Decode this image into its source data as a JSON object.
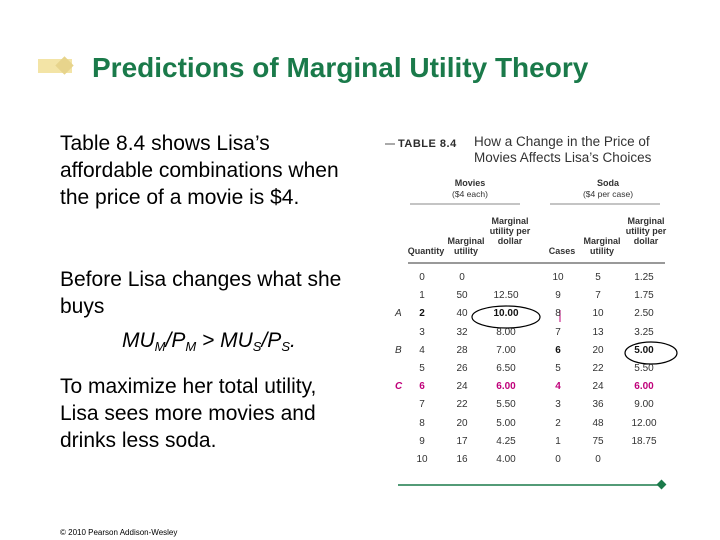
{
  "title": "Predictions of Marginal Utility Theory",
  "paragraph1": "Table 8.4 shows Lisa’s affordable combinations when the price of a movie is $4.",
  "paragraph2": "Before Lisa changes what she buys",
  "formula": {
    "a": "MU",
    "a_sub": "M",
    "b": "/P",
    "b_sub": "M",
    "mid": " > MU",
    "c_sub": "S",
    "d": "/P",
    "d_sub": "S",
    "end": "."
  },
  "paragraph3": "To maximize her total utility, Lisa sees more movies and drinks less soda.",
  "copyright": "© 2010 Pearson Addison-Wesley",
  "table": {
    "label": "TABLE 8.4",
    "caption": "How a Change in the Price of Movies Affects Lisa’s Choices",
    "movies_group": "Movies",
    "movies_price": "($4 each)",
    "soda_group": "Soda",
    "soda_price": "($4 per case)",
    "headers": [
      "Quantity",
      "Marginal utility",
      "Marginal utility per dollar",
      "Cases",
      "Marginal utility",
      "Marginal utility per dollar"
    ],
    "rows": [
      {
        "label": "",
        "cells": [
          "0",
          "0",
          "",
          "10",
          "5",
          "1.25"
        ]
      },
      {
        "label": "",
        "cells": [
          "1",
          "50",
          "12.50",
          "9",
          "7",
          "1.75"
        ]
      },
      {
        "label": "A",
        "cells": [
          "2",
          "40",
          "10.00",
          "8",
          "10",
          "2.50"
        ]
      },
      {
        "label": "",
        "cells": [
          "3",
          "32",
          "8.00",
          "7",
          "13",
          "3.25"
        ]
      },
      {
        "label": "B",
        "cells": [
          "4",
          "28",
          "7.00",
          "6",
          "20",
          "5.00"
        ]
      },
      {
        "label": "",
        "cells": [
          "5",
          "26",
          "6.50",
          "5",
          "22",
          "5.50"
        ]
      },
      {
        "label": "C",
        "cells": [
          "6",
          "24",
          "6.00",
          "4",
          "24",
          "6.00"
        ]
      },
      {
        "label": "",
        "cells": [
          "7",
          "22",
          "5.50",
          "3",
          "36",
          "9.00"
        ]
      },
      {
        "label": "",
        "cells": [
          "8",
          "20",
          "5.00",
          "2",
          "48",
          "12.00"
        ]
      },
      {
        "label": "",
        "cells": [
          "9",
          "17",
          "4.25",
          "1",
          "75",
          "18.75"
        ]
      },
      {
        "label": "",
        "cells": [
          "10",
          "16",
          "4.00",
          "0",
          "0",
          ""
        ]
      }
    ]
  },
  "colors": {
    "title": "#1a7a4a",
    "highlight": "#c0007a",
    "rule": "#1a7a4a"
  }
}
